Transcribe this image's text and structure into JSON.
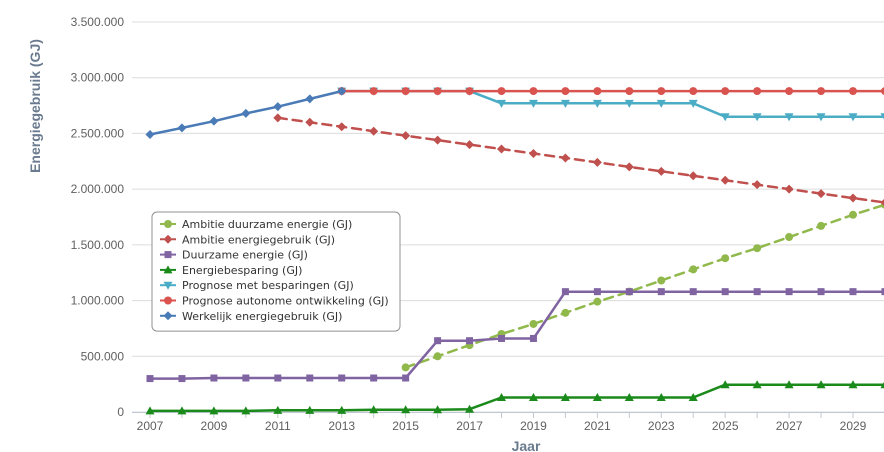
{
  "chart_data": {
    "type": "line",
    "xlabel": "Jaar",
    "ylabel": "Energiegebruik (GJ)",
    "ylim": [
      0,
      3500000
    ],
    "yticks": [
      "0",
      "500.000",
      "1.000.000",
      "1.500.000",
      "2.000.000",
      "2.500.000",
      "3.000.000",
      "3.500.000"
    ],
    "xticks": [
      "2007",
      "2009",
      "2011",
      "2013",
      "2015",
      "2017",
      "2019",
      "2021",
      "2023",
      "2025",
      "2027",
      "2029"
    ],
    "grid": "horizontal",
    "legend_position": "left-middle",
    "series": [
      {
        "name": "Ambitie duurzame energie (GJ)",
        "color": "#90b84b",
        "marker": "circle",
        "dashed": true,
        "points": [
          [
            2015,
            400000
          ],
          [
            2016,
            500000
          ],
          [
            2017,
            600000
          ],
          [
            2018,
            700000
          ],
          [
            2019,
            790000
          ],
          [
            2020,
            890000
          ],
          [
            2021,
            990000
          ],
          [
            2022,
            1080000
          ],
          [
            2023,
            1180000
          ],
          [
            2024,
            1280000
          ],
          [
            2025,
            1380000
          ],
          [
            2026,
            1470000
          ],
          [
            2027,
            1570000
          ],
          [
            2028,
            1670000
          ],
          [
            2029,
            1770000
          ],
          [
            2030,
            1860000
          ]
        ]
      },
      {
        "name": "Ambitie energiegebruik (GJ)",
        "color": "#c0504d",
        "marker": "diamond",
        "dashed": true,
        "points": [
          [
            2011,
            2640000
          ],
          [
            2012,
            2600000
          ],
          [
            2013,
            2560000
          ],
          [
            2014,
            2520000
          ],
          [
            2015,
            2480000
          ],
          [
            2016,
            2440000
          ],
          [
            2017,
            2400000
          ],
          [
            2018,
            2360000
          ],
          [
            2019,
            2320000
          ],
          [
            2020,
            2280000
          ],
          [
            2021,
            2240000
          ],
          [
            2022,
            2200000
          ],
          [
            2023,
            2160000
          ],
          [
            2024,
            2120000
          ],
          [
            2025,
            2080000
          ],
          [
            2026,
            2040000
          ],
          [
            2027,
            2000000
          ],
          [
            2028,
            1960000
          ],
          [
            2029,
            1920000
          ],
          [
            2030,
            1880000
          ]
        ]
      },
      {
        "name": "Duurzame energie (GJ)",
        "color": "#8064a2",
        "marker": "square",
        "dashed": false,
        "points": [
          [
            2007,
            300000
          ],
          [
            2008,
            300000
          ],
          [
            2009,
            305000
          ],
          [
            2010,
            305000
          ],
          [
            2011,
            305000
          ],
          [
            2012,
            305000
          ],
          [
            2013,
            305000
          ],
          [
            2014,
            305000
          ],
          [
            2015,
            305000
          ],
          [
            2016,
            640000
          ],
          [
            2017,
            640000
          ],
          [
            2018,
            660000
          ],
          [
            2019,
            660000
          ],
          [
            2020,
            1080000
          ],
          [
            2021,
            1080000
          ],
          [
            2022,
            1080000
          ],
          [
            2023,
            1080000
          ],
          [
            2024,
            1080000
          ],
          [
            2025,
            1080000
          ],
          [
            2026,
            1080000
          ],
          [
            2027,
            1080000
          ],
          [
            2028,
            1080000
          ],
          [
            2029,
            1080000
          ],
          [
            2030,
            1080000
          ]
        ]
      },
      {
        "name": "Energiebesparing (GJ)",
        "color": "#1a8a1a",
        "marker": "triangle",
        "dashed": false,
        "points": [
          [
            2007,
            10000
          ],
          [
            2008,
            10000
          ],
          [
            2009,
            10000
          ],
          [
            2010,
            10000
          ],
          [
            2011,
            15000
          ],
          [
            2012,
            15000
          ],
          [
            2013,
            15000
          ],
          [
            2014,
            20000
          ],
          [
            2015,
            20000
          ],
          [
            2016,
            20000
          ],
          [
            2017,
            25000
          ],
          [
            2018,
            130000
          ],
          [
            2019,
            130000
          ],
          [
            2020,
            130000
          ],
          [
            2021,
            130000
          ],
          [
            2022,
            130000
          ],
          [
            2023,
            130000
          ],
          [
            2024,
            130000
          ],
          [
            2025,
            245000
          ],
          [
            2026,
            245000
          ],
          [
            2027,
            245000
          ],
          [
            2028,
            245000
          ],
          [
            2029,
            245000
          ],
          [
            2030,
            245000
          ]
        ]
      },
      {
        "name": "Prognose met besparingen (GJ)",
        "color": "#4bacc6",
        "marker": "triangle-down",
        "dashed": false,
        "points": [
          [
            2013,
            2880000
          ],
          [
            2014,
            2880000
          ],
          [
            2015,
            2880000
          ],
          [
            2016,
            2880000
          ],
          [
            2017,
            2880000
          ],
          [
            2018,
            2770000
          ],
          [
            2019,
            2770000
          ],
          [
            2020,
            2770000
          ],
          [
            2021,
            2770000
          ],
          [
            2022,
            2770000
          ],
          [
            2023,
            2770000
          ],
          [
            2024,
            2770000
          ],
          [
            2025,
            2650000
          ],
          [
            2026,
            2650000
          ],
          [
            2027,
            2650000
          ],
          [
            2028,
            2650000
          ],
          [
            2029,
            2650000
          ],
          [
            2030,
            2650000
          ]
        ]
      },
      {
        "name": "Prognose autonome ontwikkeling (GJ)",
        "color": "#d9534f",
        "marker": "circle",
        "dashed": false,
        "points": [
          [
            2013,
            2880000
          ],
          [
            2014,
            2880000
          ],
          [
            2015,
            2880000
          ],
          [
            2016,
            2880000
          ],
          [
            2017,
            2880000
          ],
          [
            2018,
            2880000
          ],
          [
            2019,
            2880000
          ],
          [
            2020,
            2880000
          ],
          [
            2021,
            2880000
          ],
          [
            2022,
            2880000
          ],
          [
            2023,
            2880000
          ],
          [
            2024,
            2880000
          ],
          [
            2025,
            2880000
          ],
          [
            2026,
            2880000
          ],
          [
            2027,
            2880000
          ],
          [
            2028,
            2880000
          ],
          [
            2029,
            2880000
          ],
          [
            2030,
            2880000
          ]
        ]
      },
      {
        "name": "Werkelijk energiegebruik (GJ)",
        "color": "#4a7bb7",
        "marker": "diamond",
        "dashed": false,
        "points": [
          [
            2007,
            2490000
          ],
          [
            2008,
            2550000
          ],
          [
            2009,
            2610000
          ],
          [
            2010,
            2680000
          ],
          [
            2011,
            2740000
          ],
          [
            2012,
            2810000
          ],
          [
            2013,
            2880000
          ]
        ]
      }
    ]
  }
}
